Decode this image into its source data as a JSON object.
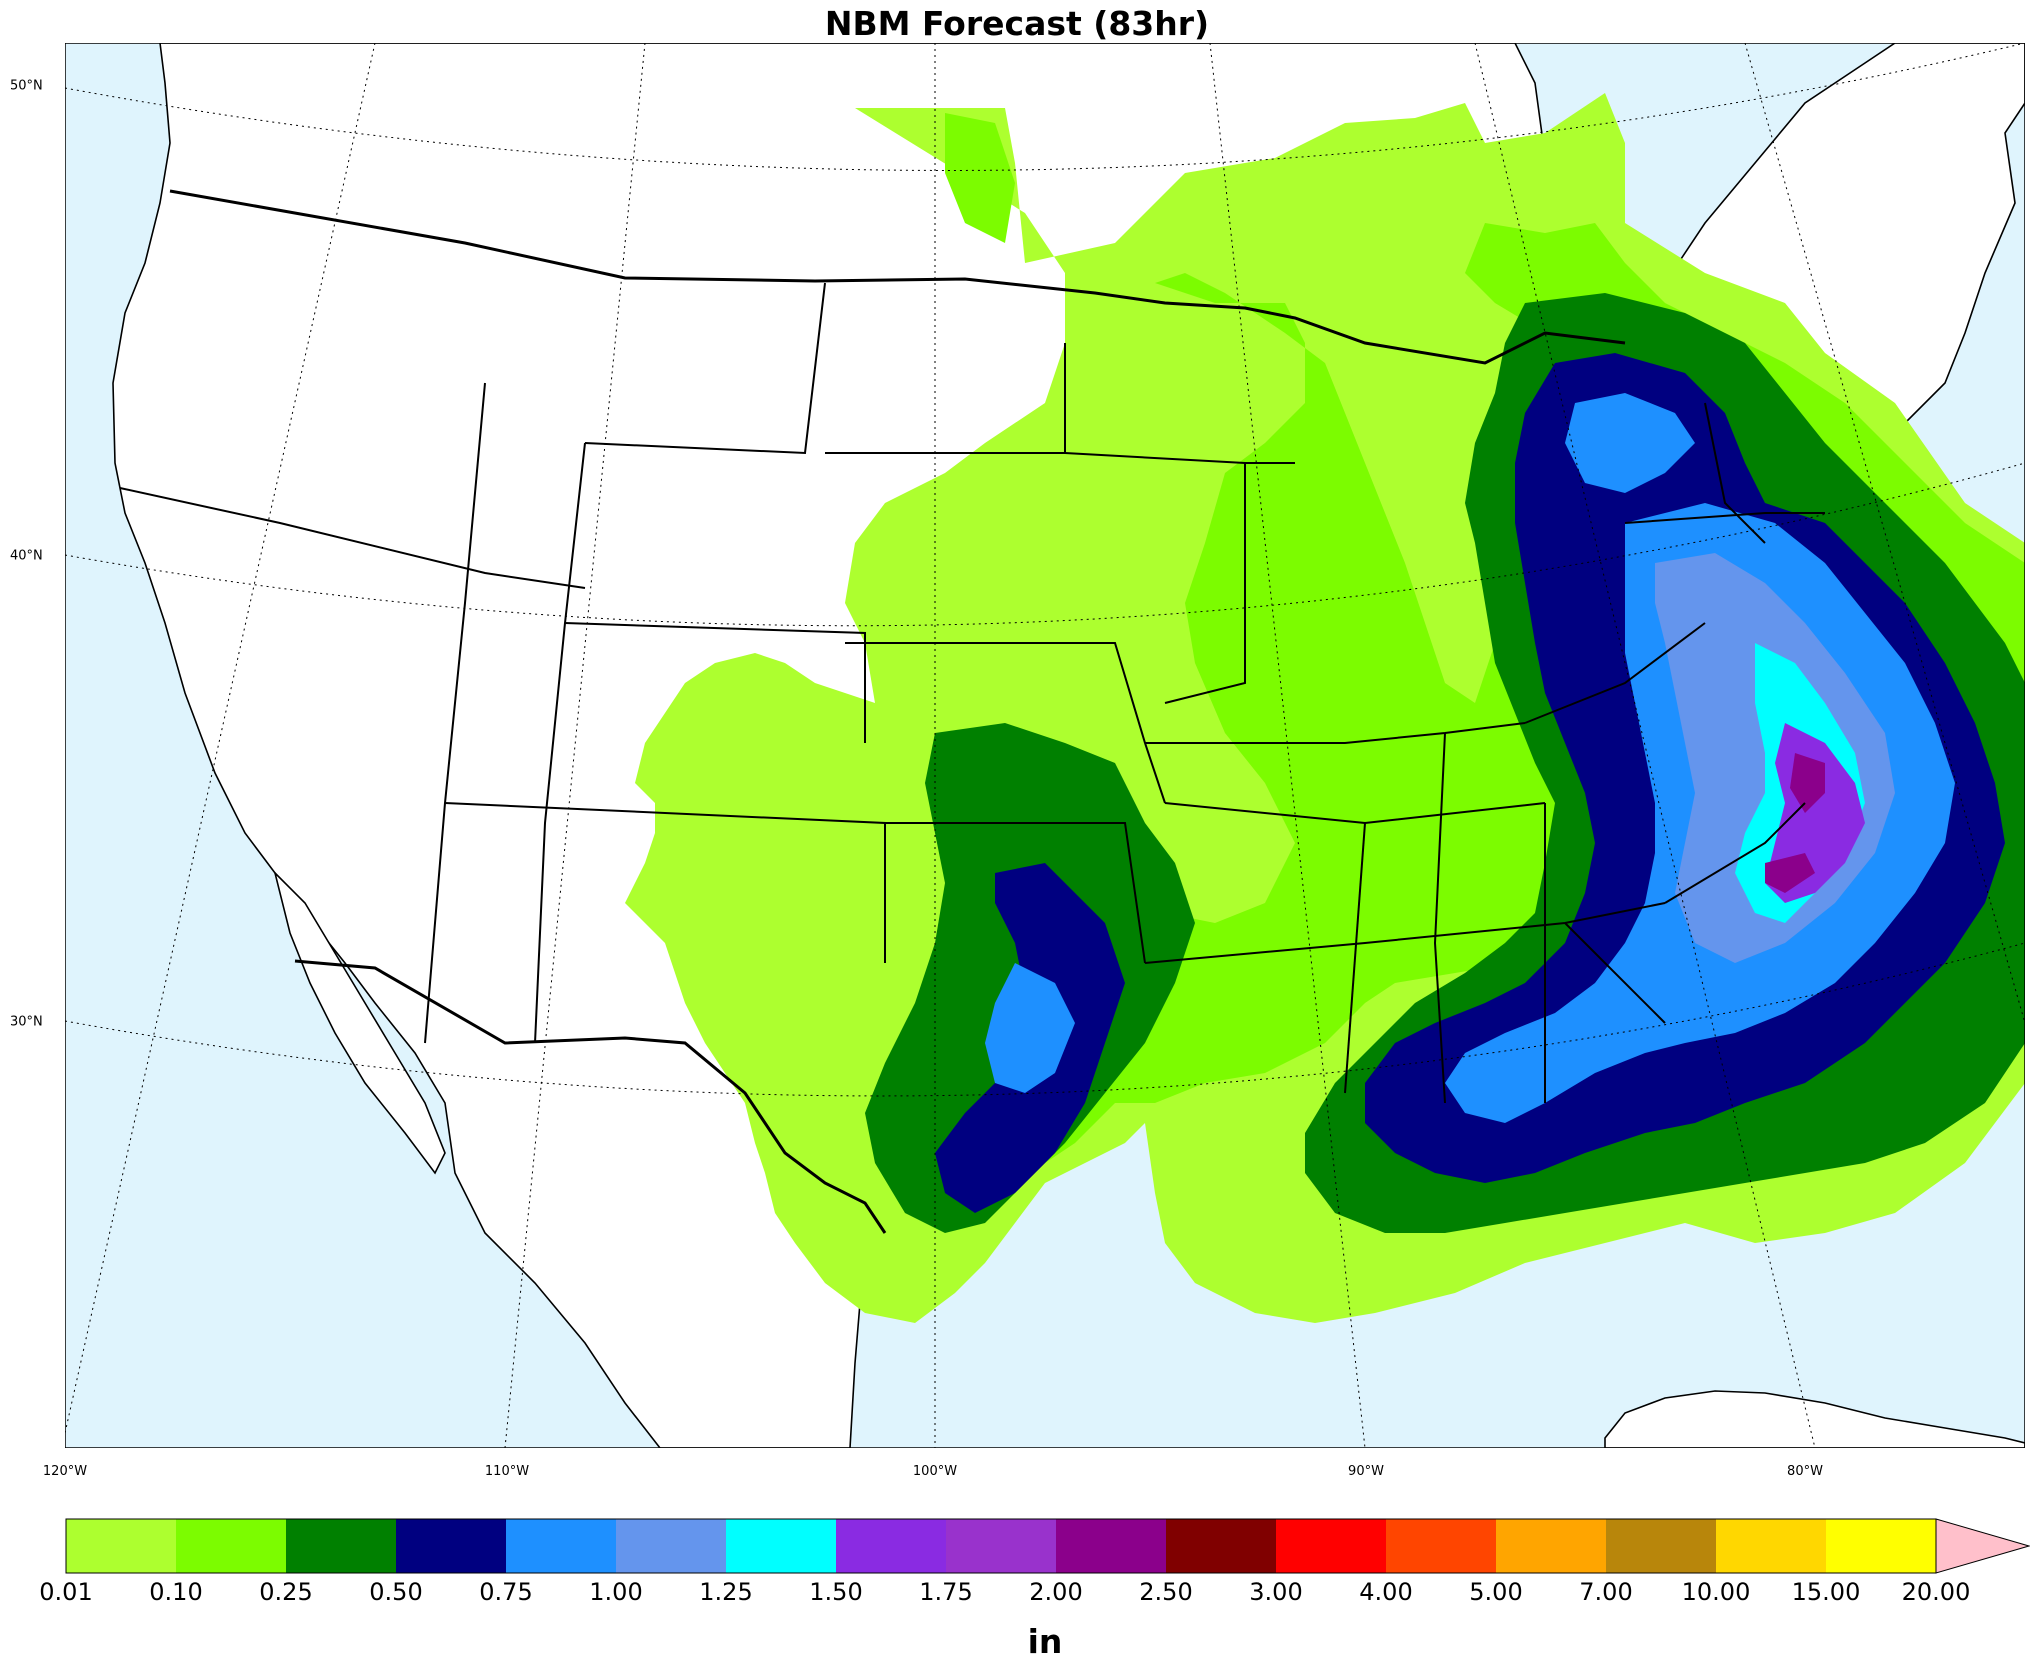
{
  "title": "NBM Forecast (83hr)",
  "colors": {
    "ocean": "#dff4fd",
    "land": "#ffffff",
    "borders": "#000000"
  },
  "lon_labels": [
    "120°W",
    "110°W",
    "100°W",
    "90°W",
    "80°W"
  ],
  "lat_labels": [
    "50°N",
    "40°N",
    "30°N"
  ],
  "colorbar": {
    "unit": "in",
    "ticks": [
      "0.01",
      "0.10",
      "0.25",
      "0.50",
      "0.75",
      "1.00",
      "1.25",
      "1.50",
      "1.75",
      "2.00",
      "2.50",
      "3.00",
      "4.00",
      "5.00",
      "7.00",
      "10.00",
      "15.00",
      "20.00"
    ],
    "colors": [
      "#adff2f",
      "#7cfc00",
      "#008000",
      "#000080",
      "#1e90ff",
      "#6495ed",
      "#00ffff",
      "#8a2be2",
      "#9932cc",
      "#8b008b",
      "#800000",
      "#ff0000",
      "#ff4500",
      "#ffa500",
      "#b8860b",
      "#ffd700",
      "#ffff00"
    ],
    "extend_color": "#ffc0cb"
  }
}
